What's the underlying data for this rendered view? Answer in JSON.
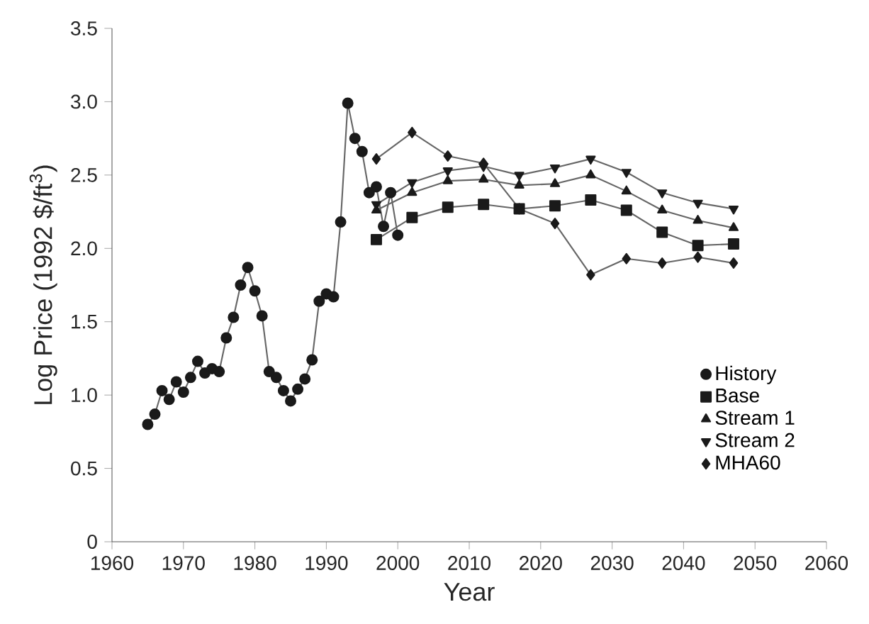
{
  "chart_data": {
    "type": "line",
    "xlabel": "Year",
    "ylabel": "Log Price (1992 $/ft$^{3}$)",
    "xlim": [
      1960,
      2060
    ],
    "xticks": [
      1960,
      1970,
      1980,
      1990,
      2000,
      2010,
      2020,
      2030,
      2040,
      2050,
      2060
    ],
    "ylim": [
      0,
      3.5
    ],
    "yticks": [
      0,
      {
        "value": 0.5,
        "label": "0.5"
      },
      {
        "value": 1,
        "label": "1.0"
      },
      {
        "value": 1.5,
        "label": "1.5"
      },
      {
        "value": 2,
        "label": "2.0"
      },
      {
        "value": 2.5,
        "label": "2.5"
      },
      {
        "value": 3,
        "label": "3.0"
      },
      {
        "value": 3.5,
        "label": "3.5"
      }
    ],
    "grid": false,
    "legend": "bottom right",
    "line_style": "solid",
    "series": [
      {
        "name": "History",
        "color": "#1a1a1a",
        "marker": "circle",
        "x": [
          1965,
          1966,
          1967,
          1968,
          1969,
          1970,
          1971,
          1972,
          1973,
          1974,
          1975,
          1976,
          1977,
          1978,
          1979,
          1980,
          1981,
          1982,
          1983,
          1984,
          1985,
          1986,
          1987,
          1988,
          1989,
          1990,
          1991,
          1992,
          1993,
          1994,
          1995,
          1996,
          1997,
          1998,
          1999,
          2000
        ],
        "values": [
          0.8,
          0.87,
          1.03,
          0.97,
          1.09,
          1.02,
          1.12,
          1.23,
          1.15,
          1.18,
          1.16,
          1.39,
          1.53,
          1.75,
          1.87,
          1.71,
          1.54,
          1.16,
          1.12,
          1.03,
          0.96,
          1.04,
          1.11,
          1.24,
          1.64,
          1.69,
          1.67,
          2.18,
          2.99,
          2.75,
          2.66,
          2.38,
          2.42,
          2.15,
          2.38,
          2.09
        ]
      },
      {
        "name": "Base",
        "color": "#1a1a1a",
        "marker": "square",
        "x": [
          1997,
          2002,
          2007,
          2012,
          2017,
          2022,
          2027,
          2032,
          2037,
          2042,
          2047
        ],
        "values": [
          2.06,
          2.21,
          2.28,
          2.3,
          2.27,
          2.29,
          2.33,
          2.26,
          2.11,
          2.02,
          2.03
        ]
      },
      {
        "name": "Stream 1",
        "color": "#1a1a1a",
        "marker": "triangle",
        "x": [
          1997,
          2002,
          2007,
          2012,
          2017,
          2022,
          2027,
          2032,
          2037,
          2042,
          2047
        ],
        "values": [
          2.26,
          2.38,
          2.46,
          2.47,
          2.43,
          2.44,
          2.5,
          2.39,
          2.26,
          2.19,
          2.14
        ]
      },
      {
        "name": "Stream 2",
        "color": "#1a1a1a",
        "marker": "triangle down",
        "x": [
          1997,
          2002,
          2007,
          2012,
          2017,
          2022,
          2027,
          2032,
          2037,
          2042,
          2047
        ],
        "values": [
          2.3,
          2.45,
          2.53,
          2.56,
          2.5,
          2.55,
          2.61,
          2.52,
          2.38,
          2.31,
          2.27
        ]
      },
      {
        "name": "MHA60",
        "color": "#1a1a1a",
        "marker": "diamond",
        "x": [
          1997,
          2002,
          2007,
          2012,
          2017,
          2022,
          2027,
          2032,
          2037,
          2042,
          2047
        ],
        "values": [
          2.61,
          2.79,
          2.63,
          2.58,
          2.27,
          2.17,
          1.82,
          1.93,
          1.9,
          1.94,
          1.9
        ]
      }
    ]
  }
}
